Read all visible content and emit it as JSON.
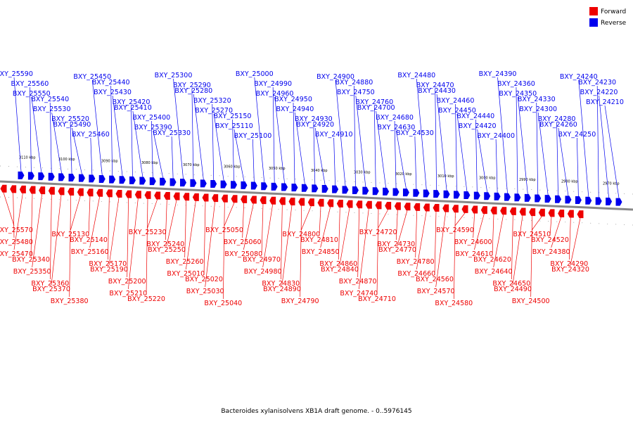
{
  "caption": "Bacteroides xylanisolvens XB1A draft genome. - 0..5976145",
  "legend": [
    {
      "label": "Forward",
      "color": "#ee0000"
    },
    {
      "label": "Reverse",
      "color": "#0000ee"
    }
  ],
  "ticks": [
    "3110 kbp",
    "3100 kbp",
    "3090 kbp",
    "3080 kbp",
    "3070 kbp",
    "3060 kbp",
    "3050 kbp",
    "3040 kbp",
    "3030 kbp",
    "3020 kbp",
    "3010 kbp",
    "3000 kbp",
    "2990 kbp",
    "2980 kbp",
    "2970 kbp"
  ],
  "reverse_genes": [
    "BXY_25590",
    "BXY_25560",
    "BXY_25550",
    "BXY_25540",
    "BXY_25530",
    "BXY_25520",
    "BXY_25490",
    "BXY_25460",
    "BXY_25450",
    "BXY_25440",
    "BXY_25430",
    "BXY_25420",
    "BXY_25410",
    "BXY_25400",
    "BXY_25390",
    "BXY_25330",
    "BXY_25300",
    "BXY_25290",
    "BXY_25280",
    "BXY_25320",
    "BXY_25270",
    "BXY_25150",
    "BXY_25110",
    "BXY_25100",
    "BXY_25000",
    "BXY_24990",
    "BXY_24960",
    "BXY_24950",
    "BXY_24940",
    "BXY_24930",
    "BXY_24920",
    "BXY_24910",
    "BXY_24900",
    "BXY_24880",
    "BXY_24750",
    "BXY_24760",
    "BXY_24700",
    "BXY_24680",
    "BXY_24630",
    "BXY_24530",
    "BXY_24480",
    "BXY_24470",
    "BXY_24430",
    "BXY_24460",
    "BXY_24450",
    "BXY_24440",
    "BXY_24420",
    "BXY_24400",
    "BXY_24390",
    "BXY_24360",
    "BXY_24350",
    "BXY_24330",
    "BXY_24300",
    "BXY_24280",
    "BXY_24260",
    "BXY_24250",
    "BXY_24240",
    "BXY_24230",
    "BXY_24220",
    "BXY_24210"
  ],
  "forward_genes": [
    "BXY_25570",
    "BXY_25480",
    "BXY_25470",
    "BXY_25340",
    "BXY_25350",
    "BXY_25360",
    "BXY_25370",
    "BXY_25380",
    "BXY_25130",
    "BXY_25140",
    "BXY_25160",
    "BXY_25170",
    "BXY_25190",
    "BXY_25200",
    "BXY_25210",
    "BXY_25220",
    "BXY_25230",
    "BXY_25240",
    "BXY_25250",
    "BXY_25260",
    "BXY_25010",
    "BXY_25020",
    "BXY_25030",
    "BXY_25040",
    "BXY_25050",
    "BXY_25060",
    "BXY_25080",
    "BXY_24970",
    "BXY_24980",
    "BXY_24830",
    "BXY_24890",
    "BXY_24790",
    "BXY_24800",
    "BXY_24810",
    "BXY_24850",
    "BXY_24860",
    "BXY_24840",
    "BXY_24870",
    "BXY_24740",
    "BXY_24710",
    "BXY_24720",
    "BXY_24730",
    "BXY_24770",
    "BXY_24780",
    "BXY_24660",
    "BXY_24560",
    "BXY_24570",
    "BXY_24580",
    "BXY_24590",
    "BXY_24600",
    "BXY_24610",
    "BXY_24620",
    "BXY_24640",
    "BXY_24650",
    "BXY_24490",
    "BXY_24500",
    "BXY_24510",
    "BXY_24520",
    "BXY_24380",
    "BXY_24290",
    "BXY_24320"
  ]
}
